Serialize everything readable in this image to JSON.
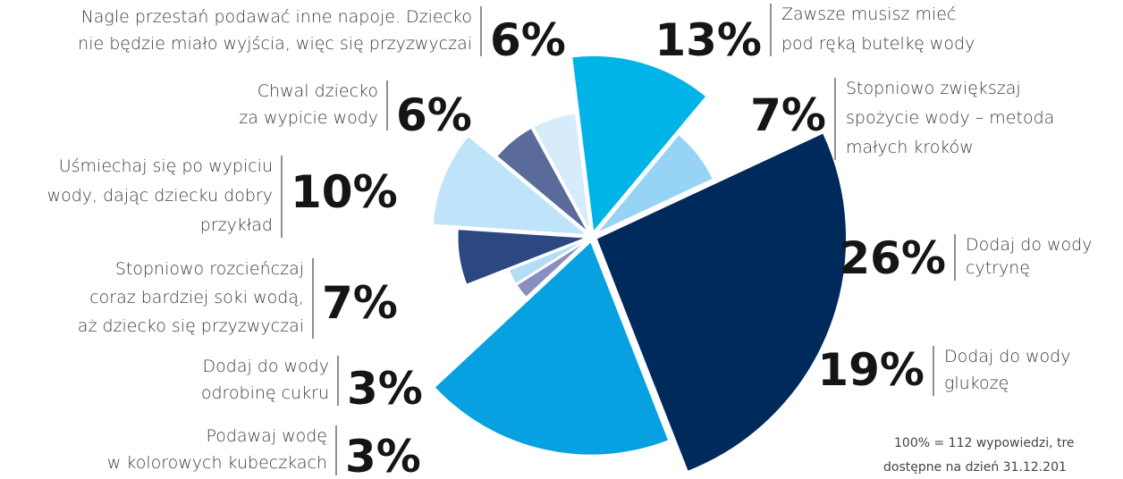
{
  "chart_data": {
    "type": "pie",
    "categories": [
      "Zawsze musisz mieć\npod ręką butelkę wody",
      "Stopniowo zwiększaj\nspożycie wody – metoda\nmałych kroków",
      "Dodaj do wody\ncytrynę",
      "Dodaj do wody\nglukozę",
      "Podawaj wodę\nw kolorowych kubeczkach",
      "Dodaj do wody\nodrobinę cukru",
      "Stopniowo rozcieńczaj\ncoraz bardziej soki wodą,\naż dziecko się przyzwyczai",
      "Uśmiechaj się po wypiciu\nwody, dając dziecku dobry\nprzykład",
      "Chwal dziecko\nza wypicie wody",
      "Nagle przestań podawać inne napoje. Dziecko\nnie będzie miało wyjścia, więc się przyzwyczai"
    ],
    "values": [
      13,
      7,
      26,
      19,
      3,
      3,
      7,
      10,
      6,
      6
    ],
    "value_labels": [
      "13%",
      "7%",
      "26%",
      "19%",
      "3%",
      "3%",
      "7%",
      "10%",
      "6%",
      "6%"
    ],
    "colors": [
      "#00b4e8",
      "#97d3f4",
      "#002a5c",
      "#07a0e0",
      "#8a8fc0",
      "#b2ddf6",
      "#2c4880",
      "#bfe3f8",
      "#5a6a9b",
      "#d6ecfa"
    ],
    "notes": [
      "100% = 112 wypowiedzi, tre",
      "dostępne na dzień 31.12.201"
    ]
  }
}
